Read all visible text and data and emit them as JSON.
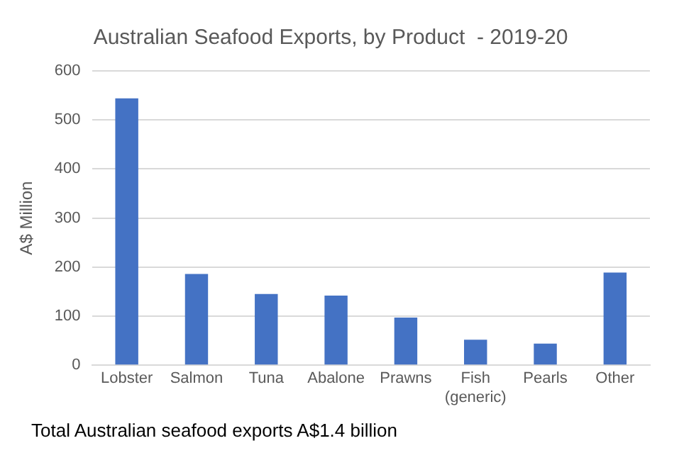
{
  "chart_data": {
    "type": "bar",
    "title": "Australian Seafood Exports, by Product  - 2019-20",
    "ylabel": "A$ Million",
    "categories": [
      "Lobster",
      "Salmon",
      "Tuna",
      "Abalone",
      "Prawns",
      "Fish (generic)",
      "Pearls",
      "Other"
    ],
    "values": [
      544,
      186,
      145,
      142,
      97,
      52,
      44,
      189
    ],
    "color": "#4472c4",
    "ylim": [
      0,
      600
    ],
    "yticks": [
      0,
      100,
      200,
      300,
      400,
      500,
      600
    ],
    "grid": "y",
    "annotations": [
      "Total Australian seafood exports A$1.4 billion"
    ]
  }
}
